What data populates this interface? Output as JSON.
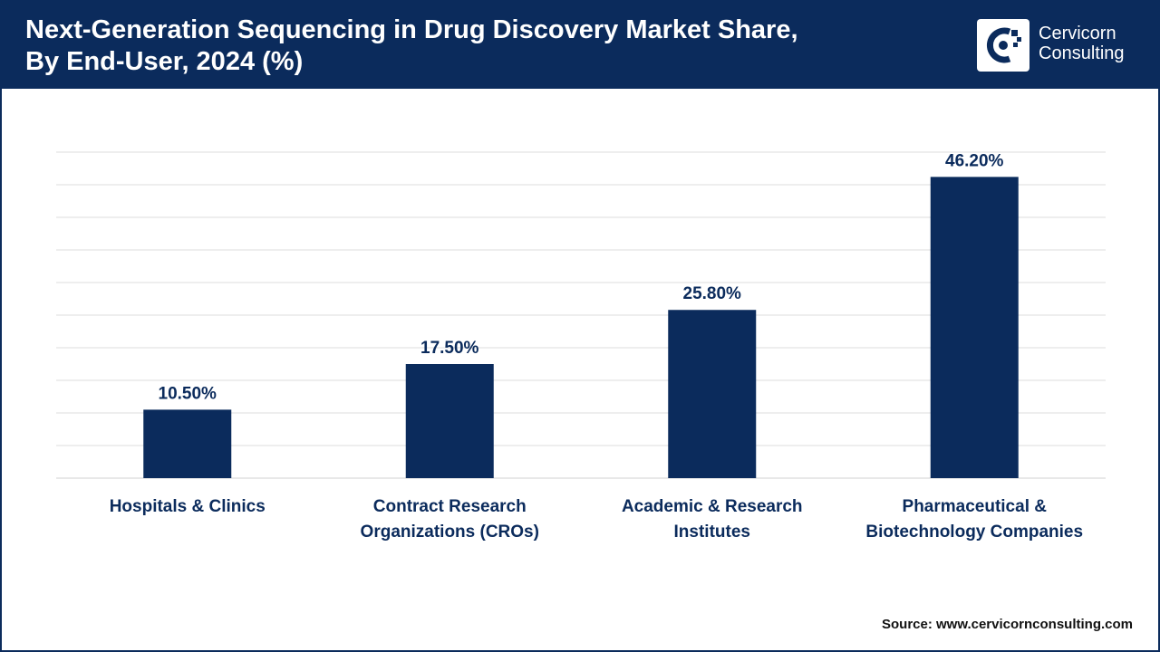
{
  "header": {
    "title_line1": "Next-Generation Sequencing in Drug Discovery Market Share,",
    "title_line2": "By End-User, 2024 (%)",
    "brand_line1": "Cervicorn",
    "brand_line2": "Consulting"
  },
  "source_text": "Source: www.cervicornconsulting.com",
  "colors": {
    "brand": "#0b2b5c",
    "bar": "#0b2b5c",
    "grid": "#dcdcdc"
  },
  "chart_data": {
    "type": "bar",
    "title": "Next-Generation Sequencing in Drug Discovery Market Share, By End-User, 2024 (%)",
    "xlabel": "",
    "ylabel": "",
    "ylim": [
      0,
      50
    ],
    "grid": true,
    "categories": [
      [
        "Hospitals & Clinics"
      ],
      [
        "Contract Research",
        "Organizations (CROs)"
      ],
      [
        "Academic & Research",
        "Institutes"
      ],
      [
        "Pharmaceutical &",
        "Biotechnology Companies"
      ]
    ],
    "values": [
      10.5,
      17.5,
      25.8,
      46.2
    ],
    "value_labels": [
      "10.50%",
      "17.50%",
      "25.80%",
      "46.20%"
    ]
  }
}
